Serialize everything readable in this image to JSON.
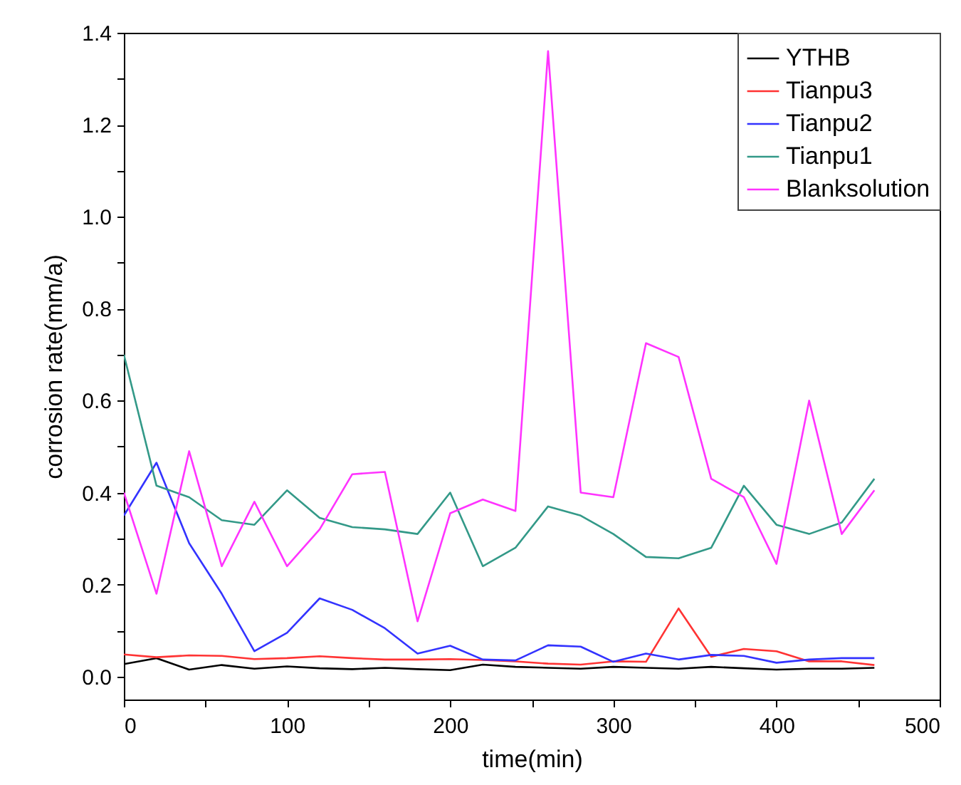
{
  "chart_data": {
    "type": "line",
    "xlabel": "time(min)",
    "ylabel": "corrosion rate(mm/a)",
    "x": [
      0,
      20,
      40,
      60,
      80,
      100,
      120,
      140,
      160,
      180,
      200,
      220,
      240,
      260,
      280,
      300,
      320,
      340,
      360,
      380,
      400,
      420,
      440,
      460
    ],
    "series": [
      {
        "name": "YTHB",
        "color": "#000000",
        "values": [
          0.027,
          0.04,
          0.015,
          0.025,
          0.017,
          0.022,
          0.018,
          0.016,
          0.019,
          0.016,
          0.014,
          0.026,
          0.021,
          0.019,
          0.017,
          0.021,
          0.019,
          0.017,
          0.021,
          0.018,
          0.015,
          0.017,
          0.017,
          0.019
        ]
      },
      {
        "name": "Tianpu3",
        "color": "#ff3333",
        "values": [
          0.048,
          0.042,
          0.046,
          0.045,
          0.038,
          0.04,
          0.044,
          0.04,
          0.037,
          0.037,
          0.038,
          0.036,
          0.033,
          0.028,
          0.026,
          0.033,
          0.032,
          0.148,
          0.043,
          0.06,
          0.055,
          0.033,
          0.033,
          0.025
        ]
      },
      {
        "name": "Tianpu2",
        "color": "#3333ff",
        "values": [
          0.35,
          0.465,
          0.29,
          0.18,
          0.055,
          0.095,
          0.17,
          0.145,
          0.105,
          0.05,
          0.067,
          0.037,
          0.035,
          0.068,
          0.065,
          0.032,
          0.05,
          0.037,
          0.047,
          0.045,
          0.03,
          0.037,
          0.04,
          0.04
        ]
      },
      {
        "name": "Tianpu1",
        "color": "#339988",
        "values": [
          0.7,
          0.415,
          0.39,
          0.34,
          0.33,
          0.405,
          0.345,
          0.325,
          0.32,
          0.31,
          0.4,
          0.24,
          0.28,
          0.37,
          0.35,
          0.31,
          0.26,
          0.257,
          0.28,
          0.415,
          0.33,
          0.31,
          0.335,
          0.43
        ]
      },
      {
        "name": "Blanksolution",
        "color": "#ff33ff",
        "values": [
          0.4,
          0.18,
          0.49,
          0.24,
          0.38,
          0.24,
          0.32,
          0.44,
          0.445,
          0.12,
          0.355,
          0.385,
          0.36,
          1.36,
          0.4,
          0.39,
          0.725,
          0.695,
          0.43,
          0.39,
          0.245,
          0.6,
          0.31,
          0.405
        ]
      }
    ],
    "xlim": [
      0,
      500
    ],
    "xticks": [
      0,
      {
        "value": 50,
        "label": null
      },
      100,
      {
        "value": 150,
        "label": null
      },
      200,
      {
        "value": 250,
        "label": null
      },
      300,
      {
        "value": 350,
        "label": null
      },
      400,
      {
        "value": 450,
        "label": null
      },
      500
    ],
    "ylim": [
      -0.05,
      1.4
    ],
    "yticks": [
      {
        "value": 0,
        "label": "0.0"
      },
      {
        "value": 0.1,
        "label": null
      },
      {
        "value": 0.2,
        "label": "0.2"
      },
      {
        "value": 0.3,
        "label": null
      },
      {
        "value": 0.4,
        "label": "0.4"
      },
      {
        "value": 0.5,
        "label": null
      },
      {
        "value": 0.6,
        "label": "0.6"
      },
      {
        "value": 0.7,
        "label": null
      },
      {
        "value": 0.8,
        "label": "0.8"
      },
      {
        "value": 0.9,
        "label": null
      },
      {
        "value": 1,
        "label": "1.0"
      },
      {
        "value": 1.1,
        "label": null
      },
      {
        "value": 1.2,
        "label": "1.2"
      },
      {
        "value": 1.3,
        "label": null
      },
      {
        "value": 1.4,
        "label": "1.4"
      }
    ],
    "grid": false,
    "legend": "top right",
    "marker": "none",
    "line_style": "solid"
  }
}
